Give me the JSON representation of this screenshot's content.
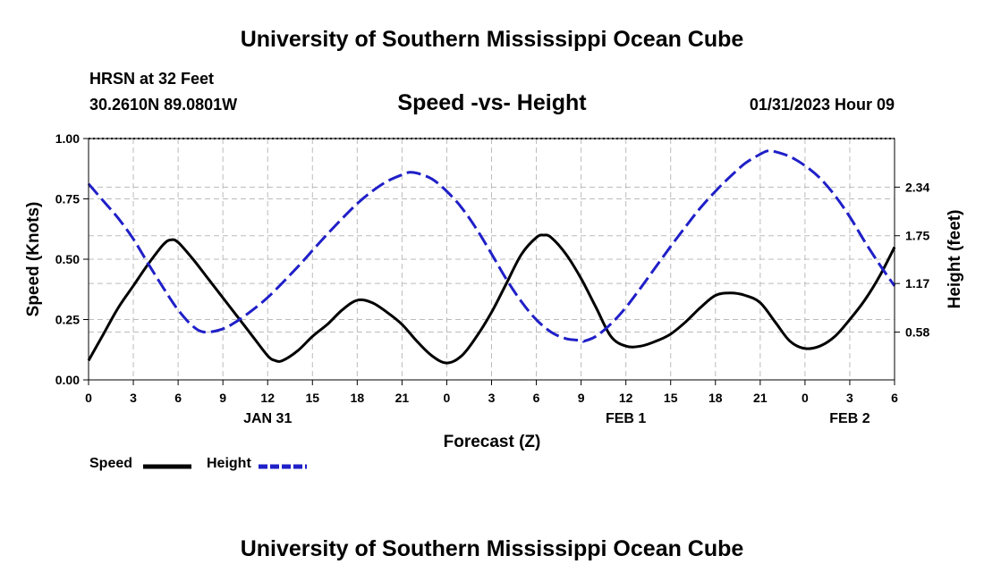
{
  "header": {
    "main_title": "University of Southern Mississippi Ocean Cube",
    "station": "HRSN at 32 Feet",
    "coordinates": "30.2610N  89.0801W",
    "chart_title": "Speed -vs- Height",
    "timestamp": "01/31/2023 Hour 09"
  },
  "footer": {
    "bottom_title": "University of Southern Mississippi Ocean Cube"
  },
  "legend": {
    "speed_label": "Speed",
    "height_label": "Height"
  },
  "colors": {
    "speed": "#000000",
    "height": "#1f1fc8",
    "grid": "#bbbbbb"
  },
  "chart_data": {
    "type": "line",
    "title": "Speed -vs- Height",
    "xlabel": "Forecast (Z)",
    "ylabel": "Speed (Knots)",
    "y2label": "Height (feet)",
    "x_range_hours": [
      0,
      54
    ],
    "x_tick_hours": [
      0,
      3,
      6,
      9,
      12,
      15,
      18,
      21,
      24,
      27,
      30,
      33,
      36,
      39,
      42,
      45,
      48,
      51,
      54
    ],
    "x_tick_labels": [
      "0",
      "3",
      "6",
      "9",
      "12",
      "15",
      "18",
      "21",
      "0",
      "3",
      "6",
      "9",
      "12",
      "15",
      "18",
      "21",
      "0",
      "3",
      "6"
    ],
    "date_labels": [
      {
        "hour": 12,
        "label": "JAN 31"
      },
      {
        "hour": 36,
        "label": "FEB 1"
      },
      {
        "hour": 51,
        "label": "FEB 2"
      }
    ],
    "ylim": [
      0,
      1
    ],
    "y_ticks": [
      0,
      0.25,
      0.5,
      0.75,
      1
    ],
    "y_tick_labels": [
      "0.00",
      "0.25",
      "0.50",
      "0.75",
      "1.00"
    ],
    "y2lim": [
      0,
      2.93
    ],
    "y2_ticks": [
      0.58,
      1.17,
      1.75,
      2.34
    ],
    "y2_tick_labels": [
      "0.58",
      "1.17",
      "1.75",
      "2.34"
    ],
    "series": [
      {
        "name": "Speed",
        "axis": "left",
        "style": "solid",
        "x": [
          0,
          1,
          2,
          3,
          4,
          5,
          5.5,
          6,
          7,
          8,
          9,
          10,
          11,
          12,
          12.5,
          13,
          14,
          15,
          16,
          17,
          18,
          19,
          20,
          21,
          22,
          23,
          24,
          25,
          26,
          27,
          28,
          29,
          30,
          30.5,
          31,
          32,
          33,
          34,
          35,
          36,
          37,
          38,
          39,
          40,
          41,
          42,
          43,
          44,
          45,
          46,
          47,
          48,
          49,
          50,
          51,
          52,
          53,
          54
        ],
        "values": [
          0.08,
          0.19,
          0.3,
          0.39,
          0.48,
          0.56,
          0.58,
          0.57,
          0.5,
          0.42,
          0.34,
          0.26,
          0.18,
          0.1,
          0.08,
          0.08,
          0.12,
          0.18,
          0.23,
          0.29,
          0.33,
          0.32,
          0.28,
          0.23,
          0.16,
          0.1,
          0.07,
          0.1,
          0.18,
          0.28,
          0.4,
          0.52,
          0.59,
          0.6,
          0.59,
          0.52,
          0.42,
          0.3,
          0.18,
          0.14,
          0.14,
          0.16,
          0.19,
          0.24,
          0.3,
          0.35,
          0.36,
          0.35,
          0.32,
          0.24,
          0.16,
          0.13,
          0.14,
          0.18,
          0.25,
          0.33,
          0.43,
          0.55
        ]
      },
      {
        "name": "Height",
        "axis": "right",
        "style": "dashed",
        "x": [
          0,
          1,
          2,
          3,
          4,
          5,
          6,
          7,
          7.8,
          9,
          10,
          11,
          12,
          13,
          14,
          15,
          16,
          17,
          18,
          19,
          20,
          21,
          21.5,
          22,
          23,
          24,
          25,
          26,
          27,
          28,
          29,
          30,
          31,
          32,
          33,
          33.2,
          34,
          35,
          36,
          37,
          38,
          39,
          40,
          41,
          42,
          43,
          44,
          45,
          45.5,
          46,
          47,
          48,
          49,
          50,
          51,
          52,
          53,
          54
        ],
        "values": [
          2.38,
          2.17,
          1.96,
          1.71,
          1.41,
          1.12,
          0.85,
          0.65,
          0.58,
          0.62,
          0.72,
          0.85,
          1.0,
          1.18,
          1.37,
          1.57,
          1.77,
          1.96,
          2.14,
          2.29,
          2.41,
          2.49,
          2.52,
          2.51,
          2.44,
          2.29,
          2.09,
          1.83,
          1.53,
          1.22,
          0.95,
          0.73,
          0.58,
          0.5,
          0.48,
          0.47,
          0.53,
          0.68,
          0.88,
          1.12,
          1.37,
          1.62,
          1.86,
          2.09,
          2.29,
          2.47,
          2.63,
          2.74,
          2.78,
          2.77,
          2.71,
          2.6,
          2.45,
          2.24,
          1.98,
          1.68,
          1.4,
          1.14
        ]
      }
    ]
  }
}
